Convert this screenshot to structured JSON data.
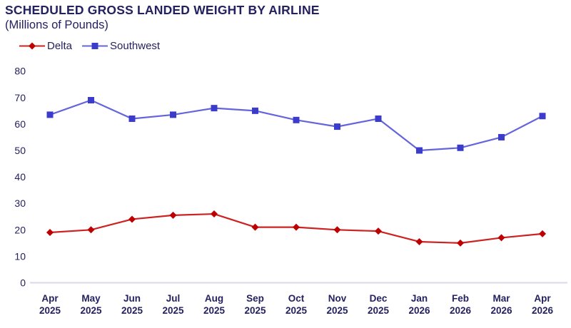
{
  "header": {
    "title": "SCHEDULED GROSS LANDED WEIGHT BY AIRLINE",
    "subtitle": "(Millions of Pounds)"
  },
  "colors": {
    "background": "#FFFFFF",
    "text_navy": "#23215F",
    "axis_line": "#D8D8F0",
    "delta_line": "#CC2222",
    "delta_marker": "#BE0000",
    "southwest_line": "#6464DC",
    "southwest_marker": "#3C3CCC"
  },
  "legend": [
    {
      "label": "Delta",
      "marker": "diamond"
    },
    {
      "label": "Southwest",
      "marker": "square"
    }
  ],
  "chart_data": {
    "type": "line",
    "title": "SCHEDULED GROSS LANDED WEIGHT BY AIRLINE",
    "subtitle": "(Millions of Pounds)",
    "xlabel": "",
    "ylabel": "Millions of Pounds",
    "ylim": [
      0,
      80
    ],
    "ytick_step": 10,
    "grid": false,
    "legend_position": "top-left",
    "categories": [
      "Apr 2025",
      "May 2025",
      "Jun 2025",
      "Jul 2025",
      "Aug 2025",
      "Sep 2025",
      "Oct 2025",
      "Nov 2025",
      "Dec 2025",
      "Jan 2026",
      "Feb 2026",
      "Mar 2026",
      "Apr 2026"
    ],
    "series": [
      {
        "name": "Delta",
        "marker": "diamond",
        "line_color": "#CC2222",
        "marker_color": "#BE0000",
        "values": [
          19,
          20,
          24,
          25.5,
          26,
          21,
          21,
          20,
          19.5,
          15.5,
          15,
          17,
          18.5
        ]
      },
      {
        "name": "Southwest",
        "marker": "square",
        "line_color": "#6464DC",
        "marker_color": "#3C3CCC",
        "values": [
          63.5,
          69,
          62,
          63.5,
          66,
          65,
          61.5,
          59,
          62,
          50,
          51,
          55,
          63
        ]
      }
    ]
  }
}
